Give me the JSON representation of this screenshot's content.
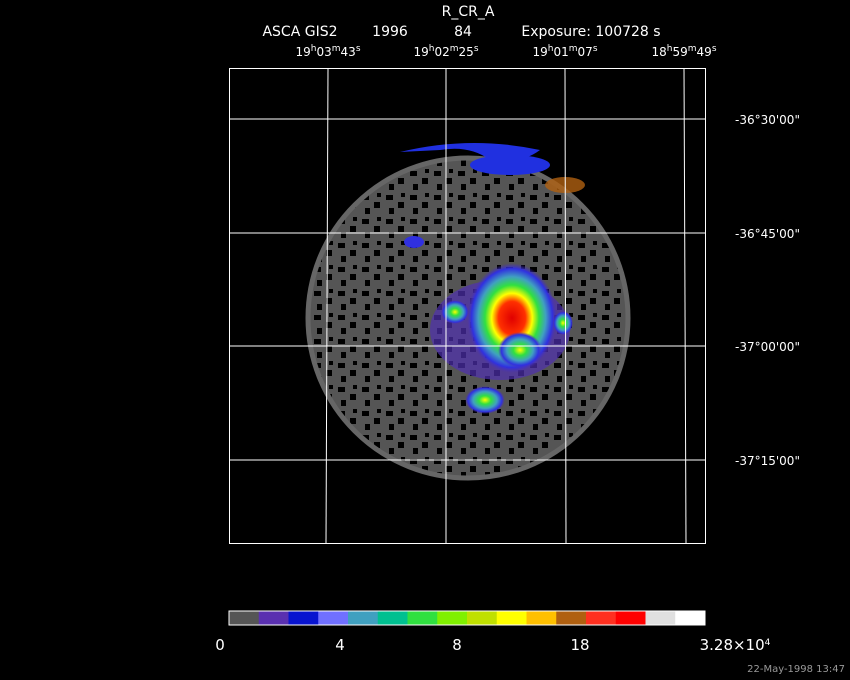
{
  "header": {
    "title": "R_CR_A",
    "instrument": "ASCA GIS2",
    "year": "1996",
    "number": "84",
    "exposure": "Exposure: 100728 s"
  },
  "ra_labels": [
    [
      "19",
      "h",
      "03",
      "m",
      "43",
      "s"
    ],
    [
      "19",
      "h",
      "02",
      "m",
      "25",
      "s"
    ],
    [
      "19",
      "h",
      "01",
      "m",
      "07",
      "s"
    ],
    [
      "18",
      "h",
      "59",
      "m",
      "49",
      "s"
    ]
  ],
  "dec_labels": [
    "-36°30'00\"",
    "-36°45'00\"",
    "-37°00'00\"",
    "-37°15'00\""
  ],
  "colorbar": {
    "colors": [
      "#555555",
      "#5a30b0",
      "#0814d0",
      "#7070ff",
      "#40a0c0",
      "#00c090",
      "#30e040",
      "#80f000",
      "#c0e000",
      "#ffff00",
      "#ffc000",
      "#b06010",
      "#ff3020",
      "#ff0000",
      "#e0e0e0",
      "#ffffff"
    ],
    "labels": [
      [
        "0"
      ],
      [
        "4"
      ],
      [
        "8"
      ],
      [
        "18"
      ],
      [
        "3.28×10",
        "4"
      ]
    ]
  },
  "timestamp": "22-May-1998 13:47"
}
